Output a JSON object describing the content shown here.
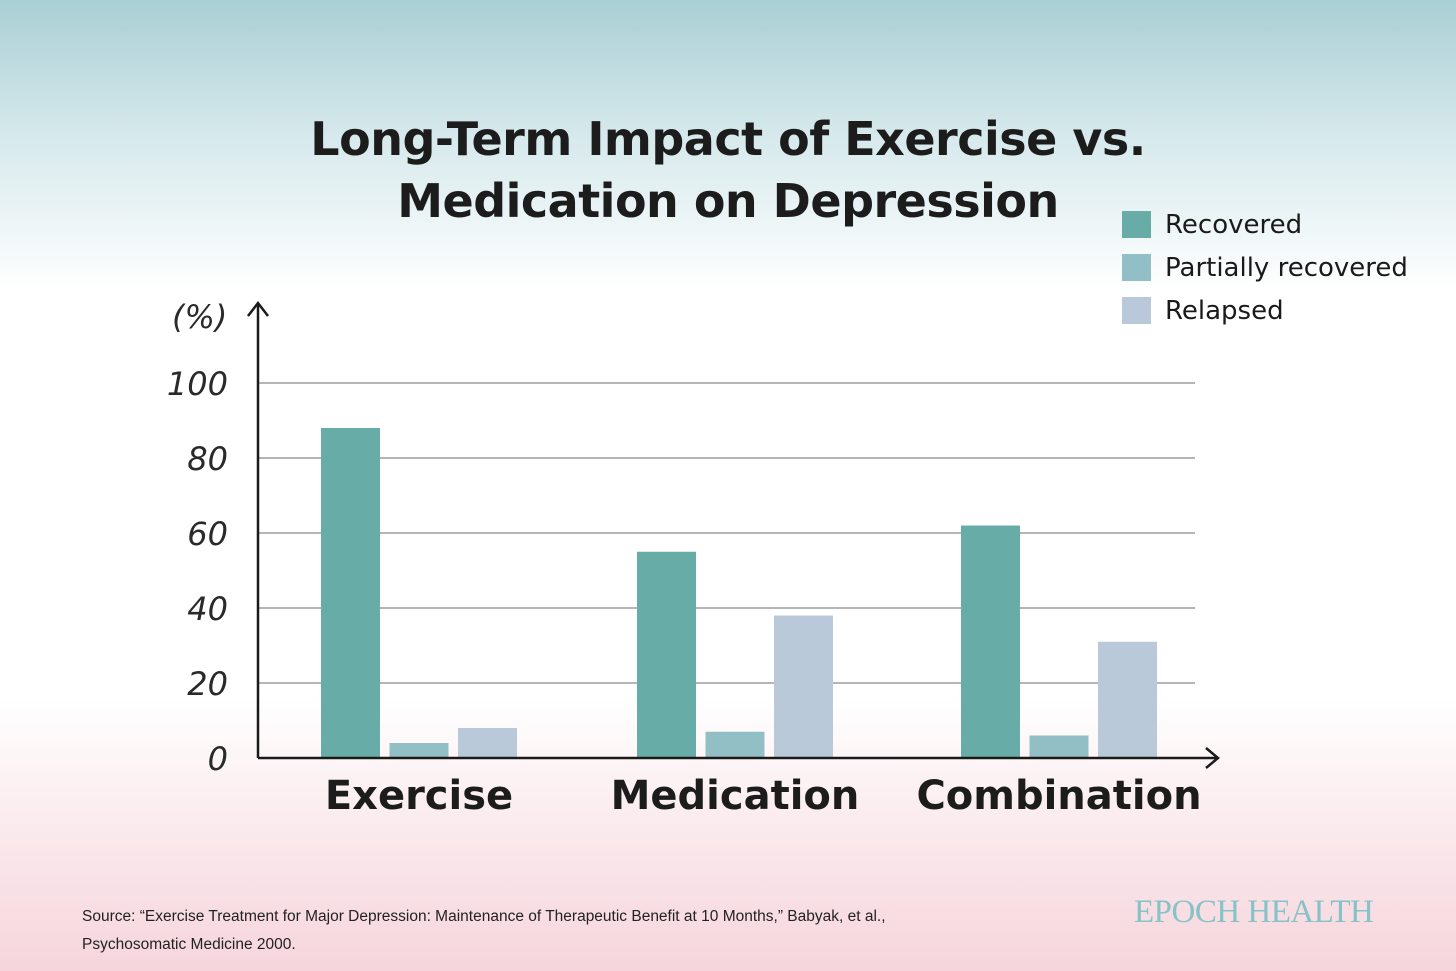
{
  "chart_data": {
    "type": "bar",
    "title_lines": [
      "Long-Term Impact of Exercise vs.",
      "Medication on Depression"
    ],
    "ylabel": "(%)",
    "xlabel": "",
    "ylim": [
      0,
      100
    ],
    "yticks": [
      0,
      20,
      40,
      60,
      80,
      100
    ],
    "categories": [
      "Exercise",
      "Medication",
      "Combination"
    ],
    "series": [
      {
        "name": "Recovered",
        "color": "#68aca8",
        "values": [
          88,
          55,
          62
        ]
      },
      {
        "name": "Partially recovered",
        "color": "#92bfc5",
        "values": [
          4,
          7,
          6
        ]
      },
      {
        "name": "Relapsed",
        "color": "#b9c9da",
        "values": [
          8,
          38,
          31
        ]
      }
    ],
    "grid": true,
    "legend_position": "top-right"
  },
  "source": {
    "line1": "Source: “Exercise Treatment for Major Depression: Maintenance of Therapeutic Benefit at 10 Months,” Babyak, et al.,",
    "line2": "Psychosomatic Medicine 2000."
  },
  "brand": "EPOCH HEALTH"
}
